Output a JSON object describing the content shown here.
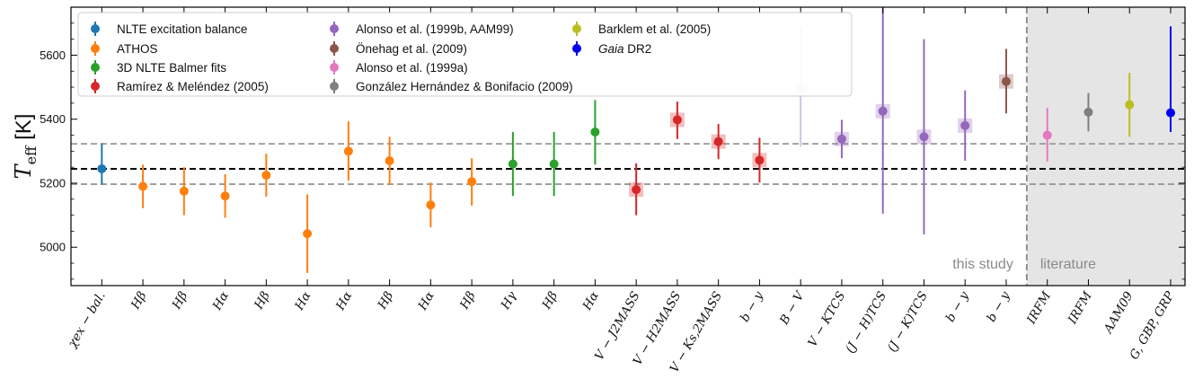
{
  "chart_data": {
    "type": "scatter",
    "title": "",
    "xlabel": "",
    "ylabel": "T",
    "ylabel_sub": "eff",
    "ylabel_unit": "[K]",
    "ylim": [
      4880,
      5750
    ],
    "yticks": [
      5000,
      5200,
      5400,
      5600
    ],
    "reference_lines": {
      "mean": 5245,
      "upper": 5323,
      "lower": 5197
    },
    "regions": [
      {
        "label": "this study",
        "shaded": false
      },
      {
        "label": "literature",
        "shaded": true
      }
    ],
    "legend": [
      {
        "name": "NLTE excitation balance",
        "color": "#1f77b4"
      },
      {
        "name": "ATHOS",
        "color": "#ff7f0e"
      },
      {
        "name": "3D NLTE Balmer fits",
        "color": "#2ca02c"
      },
      {
        "name": "Ramírez & Meléndez (2005)",
        "color": "#d62728"
      },
      {
        "name": "Alonso et al. (1999b, AAM99)",
        "color": "#9467bd"
      },
      {
        "name": "Önehag et al. (2009)",
        "color": "#8c564b"
      },
      {
        "name": "Alonso et al. (1999a)",
        "color": "#e377c2"
      },
      {
        "name": "González Hernández & Bonifacio (2009)",
        "color": "#7f7f7f"
      },
      {
        "name": "Barklem et al. (2005)",
        "color": "#bcbd22"
      },
      {
        "name": "Gaia DR2",
        "italic_part": "Gaia",
        "rest": " DR2",
        "color": "#0000ee"
      }
    ],
    "points": [
      {
        "label": "χex − bal.",
        "value": 5245,
        "low": 5195,
        "high": 5325,
        "series": 0,
        "square": false,
        "faded": false
      },
      {
        "label": "Hβ",
        "value": 5190,
        "low": 5122,
        "high": 5258,
        "series": 1,
        "square": false,
        "faded": false
      },
      {
        "label": "Hβ",
        "value": 5175,
        "low": 5100,
        "high": 5250,
        "series": 1,
        "square": false,
        "faded": false
      },
      {
        "label": "Hα",
        "value": 5160,
        "low": 5092,
        "high": 5228,
        "series": 1,
        "square": false,
        "faded": false
      },
      {
        "label": "Hβ",
        "value": 5225,
        "low": 5158,
        "high": 5292,
        "series": 1,
        "square": false,
        "faded": false
      },
      {
        "label": "Hα",
        "value": 5042,
        "low": 4920,
        "high": 5165,
        "series": 1,
        "square": false,
        "faded": false
      },
      {
        "label": "Hα",
        "value": 5300,
        "low": 5208,
        "high": 5393,
        "series": 1,
        "square": false,
        "faded": false
      },
      {
        "label": "Hβ",
        "value": 5270,
        "low": 5195,
        "high": 5345,
        "series": 1,
        "square": false,
        "faded": false
      },
      {
        "label": "Hα",
        "value": 5132,
        "low": 5062,
        "high": 5202,
        "series": 1,
        "square": false,
        "faded": false
      },
      {
        "label": "Hβ",
        "value": 5205,
        "low": 5130,
        "high": 5278,
        "series": 1,
        "square": false,
        "faded": false
      },
      {
        "label": "Hγ",
        "value": 5260,
        "low": 5160,
        "high": 5360,
        "series": 2,
        "square": false,
        "faded": false
      },
      {
        "label": "Hβ",
        "value": 5260,
        "low": 5160,
        "high": 5360,
        "series": 2,
        "square": false,
        "faded": false
      },
      {
        "label": "Hα",
        "value": 5360,
        "low": 5258,
        "high": 5460,
        "series": 2,
        "square": false,
        "faded": false
      },
      {
        "label": "V − J2MASS",
        "value": 5180,
        "low": 5100,
        "high": 5262,
        "series": 3,
        "square": true,
        "faded": false
      },
      {
        "label": "V − H2MASS",
        "value": 5398,
        "low": 5338,
        "high": 5455,
        "series": 3,
        "square": true,
        "faded": false
      },
      {
        "label": "V − Ks,2MASS",
        "value": 5330,
        "low": 5275,
        "high": 5385,
        "series": 3,
        "square": true,
        "faded": false
      },
      {
        "label": "b − y",
        "value": 5272,
        "low": 5202,
        "high": 5342,
        "series": 3,
        "square": true,
        "faded": false
      },
      {
        "label": "B − V",
        "value": 5495,
        "low": 5315,
        "high": 5685,
        "series": 4,
        "square": true,
        "faded": true
      },
      {
        "label": "V − KTCS",
        "value": 5338,
        "low": 5278,
        "high": 5398,
        "series": 4,
        "square": true,
        "faded": false
      },
      {
        "label": "(J − H)TCS",
        "value": 5425,
        "low": 5105,
        "high": 5750,
        "series": 4,
        "square": true,
        "faded": false
      },
      {
        "label": "(J − K)TCS",
        "value": 5345,
        "low": 5040,
        "high": 5650,
        "series": 4,
        "square": true,
        "faded": false
      },
      {
        "label": "b − y",
        "value": 5380,
        "low": 5270,
        "high": 5490,
        "series": 4,
        "square": true,
        "faded": false
      },
      {
        "label": "b − y",
        "value": 5518,
        "low": 5418,
        "high": 5620,
        "series": 5,
        "square": true,
        "faded": false
      },
      {
        "label": "IRFM",
        "value": 5350,
        "low": 5268,
        "high": 5435,
        "series": 6,
        "square": false,
        "faded": false
      },
      {
        "label": "IRFM",
        "value": 5422,
        "low": 5362,
        "high": 5482,
        "series": 7,
        "square": false,
        "faded": false
      },
      {
        "label": "AAM09",
        "value": 5445,
        "low": 5345,
        "high": 5545,
        "series": 8,
        "square": false,
        "faded": false
      },
      {
        "label": "G, GBP, GRP",
        "value": 5420,
        "low": 5360,
        "high": 5690,
        "series": 9,
        "square": false,
        "faded": false
      }
    ]
  }
}
